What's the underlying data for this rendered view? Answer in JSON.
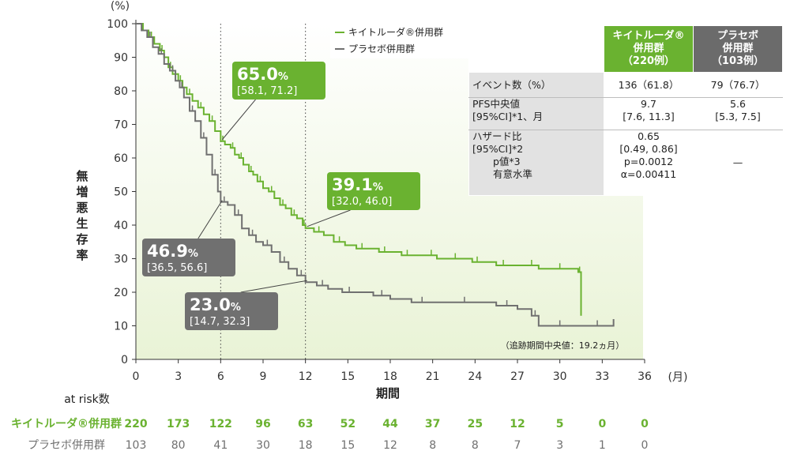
{
  "chart_data": {
    "type": "line",
    "subtype": "kaplan-meier",
    "y_unit": "(%)",
    "x_unit": "(月)",
    "ylabel": "無増悪生存率",
    "xlabel": "期間",
    "xlim": [
      0,
      36
    ],
    "ylim": [
      0,
      100
    ],
    "x_ticks": [
      "0",
      "3",
      "6",
      "9",
      "12",
      "15",
      "18",
      "21",
      "24",
      "27",
      "30",
      "33",
      "36"
    ],
    "y_ticks": [
      "0",
      "10",
      "20",
      "30",
      "40",
      "50",
      "60",
      "70",
      "80",
      "90",
      "100"
    ],
    "reference_lines_x": [
      6,
      12
    ],
    "series": [
      {
        "name": "キイトルーダ®併用群",
        "color": "#6ab230",
        "x": [
          0,
          0.5,
          0.9,
          1.3,
          1.7,
          2.0,
          2.3,
          2.6,
          3.0,
          3.3,
          3.6,
          4.0,
          4.4,
          4.8,
          5.2,
          5.6,
          6.0,
          6.3,
          6.7,
          7.0,
          7.3,
          7.6,
          8.0,
          8.3,
          8.6,
          9.0,
          9.4,
          9.8,
          10.2,
          10.6,
          11.0,
          11.4,
          11.8,
          12.0,
          12.6,
          13.3,
          14.0,
          14.8,
          15.6,
          16.4,
          17.2,
          18.0,
          18.8,
          19.6,
          20.5,
          21.3,
          22.2,
          23.0,
          23.8,
          24.5,
          25.5,
          26.5,
          27.5,
          28.5,
          29.5,
          30.5,
          31.3,
          31.5
        ],
        "y": [
          100,
          98,
          96,
          94,
          92,
          90,
          87,
          85,
          83,
          81,
          79,
          77,
          75,
          73,
          71,
          68,
          65,
          64,
          63,
          61,
          60,
          58,
          56,
          55,
          53,
          51,
          50,
          48,
          46,
          45,
          43,
          42,
          40,
          39.1,
          38,
          37,
          35,
          34,
          33,
          33,
          32,
          32,
          31,
          31,
          31,
          30,
          30,
          30,
          29,
          29,
          28,
          28,
          28,
          27,
          27,
          27,
          26,
          13
        ],
        "callouts": [
          {
            "x": 6,
            "value": "65.0",
            "ci": "[58.1, 71.2]"
          },
          {
            "x": 12,
            "value": "39.1",
            "ci": "[32.0, 46.0]"
          }
        ]
      },
      {
        "name": "プラセボ併用群",
        "color": "#707070",
        "x": [
          0,
          0.4,
          0.8,
          1.2,
          1.6,
          2.0,
          2.4,
          2.8,
          3.1,
          3.4,
          3.8,
          4.2,
          4.6,
          5.0,
          5.4,
          5.8,
          6.0,
          6.5,
          7.0,
          7.5,
          8.0,
          8.5,
          9.0,
          9.6,
          10.2,
          10.8,
          11.4,
          12.0,
          12.8,
          13.6,
          14.6,
          15.6,
          16.8,
          18.0,
          19.5,
          21.0,
          22.5,
          24.0,
          25.5,
          27.0,
          28.0,
          28.5,
          29.5,
          30.5,
          31.5,
          33.8
        ],
        "y": [
          100,
          98,
          96,
          93,
          91,
          88,
          86,
          83,
          81,
          78,
          74,
          71,
          66,
          61,
          55,
          50,
          46.9,
          46,
          43,
          39,
          37,
          35,
          34,
          32,
          29,
          27,
          25,
          23.0,
          22,
          21,
          20,
          20,
          19,
          18,
          17,
          17,
          17,
          17,
          16,
          15,
          13,
          10,
          10,
          10,
          10,
          12
        ],
        "callouts": [
          {
            "x": 6,
            "value": "46.9",
            "ci": "[36.5, 56.6]"
          },
          {
            "x": 12,
            "value": "23.0",
            "ci": "[14.7, 32.3]"
          }
        ]
      }
    ],
    "legend_position": "top-center",
    "annotation": "（追跡期間中央値：19.2ヵ月）",
    "at_risk": {
      "header": "at risk数",
      "times": [
        0,
        3,
        6,
        9,
        12,
        15,
        18,
        21,
        24,
        27,
        30,
        33,
        36
      ],
      "rows": [
        {
          "label": "キイトルーダ®併用群",
          "color": "#6ab230",
          "values": [
            "220",
            "173",
            "122",
            "96",
            "63",
            "52",
            "44",
            "37",
            "25",
            "12",
            "5",
            "0",
            "0"
          ]
        },
        {
          "label": "プラセボ併用群",
          "color": "#707070",
          "values": [
            "103",
            "80",
            "41",
            "30",
            "18",
            "15",
            "12",
            "8",
            "8",
            "7",
            "3",
            "1",
            "0"
          ]
        }
      ]
    }
  },
  "summary_table": {
    "col_keytruda": [
      "キイトルーダ®",
      "併用群",
      "（220例）"
    ],
    "col_placebo": [
      "プラセボ",
      "併用群",
      "（103例）"
    ],
    "row_events": {
      "label": "イベント数（%）",
      "keytruda": "136（61.8）",
      "placebo": "79（76.7）"
    },
    "row_pfs": {
      "label": [
        "PFS中央値",
        "[95%CI]*1、月"
      ],
      "keytruda": [
        "9.7",
        "[7.6, 11.3]"
      ],
      "placebo": [
        "5.6",
        "[5.3, 7.5]"
      ]
    },
    "row_hr": {
      "label": [
        "ハザード比",
        "[95%CI]*2",
        "p値*3",
        "有意水準"
      ],
      "keytruda": [
        "0.65",
        "[0.49, 0.86]",
        "p=0.0012",
        "α=0.00411"
      ],
      "placebo": "—"
    }
  }
}
